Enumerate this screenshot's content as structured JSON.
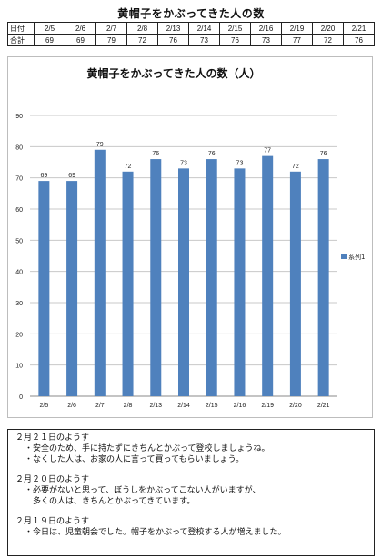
{
  "page": {
    "title": "黄帽子をかぶってきた人の数"
  },
  "table": {
    "row1_label": "日付",
    "row2_label": "合計",
    "dates": [
      "2/5",
      "2/6",
      "2/7",
      "2/8",
      "2/13",
      "2/14",
      "2/15",
      "2/16",
      "2/19",
      "2/20",
      "2/21"
    ],
    "totals": [
      "69",
      "69",
      "79",
      "72",
      "76",
      "73",
      "76",
      "73",
      "77",
      "72",
      "76"
    ]
  },
  "chart_data": {
    "type": "bar",
    "title": "黄帽子をかぶってきた人の数（人）",
    "categories": [
      "2/5",
      "2/6",
      "2/7",
      "2/8",
      "2/13",
      "2/14",
      "2/15",
      "2/16",
      "2/19",
      "2/20",
      "2/21"
    ],
    "series": [
      {
        "name": "系列1",
        "values": [
          69,
          69,
          79,
          72,
          76,
          73,
          76,
          73,
          77,
          72,
          76
        ]
      }
    ],
    "ylim": [
      0,
      90
    ],
    "yticks": [
      0,
      10,
      20,
      30,
      40,
      50,
      60,
      70,
      80,
      90
    ],
    "grid": true,
    "legend": "right",
    "bar_color": "#4f81bd",
    "data_labels": true
  },
  "notes": [
    {
      "heading": "２月２１日のようす",
      "lines": [
        "・安全のため、手に持たずにきちんとかぶって登校しましょうね。",
        "・なくした人は、お家の人に言って買ってもらいましょう。"
      ]
    },
    {
      "heading": "２月２０日のようす",
      "lines": [
        "・必要がないと思って、ぼうしをかぶってこない人がいますが、",
        "　多くの人は、きちんとかぶってきています。"
      ]
    },
    {
      "heading": "２月１９日のようす",
      "lines": [
        "・今日は、児童朝会でした。帽子をかぶって登校する人が増えました。"
      ]
    }
  ]
}
